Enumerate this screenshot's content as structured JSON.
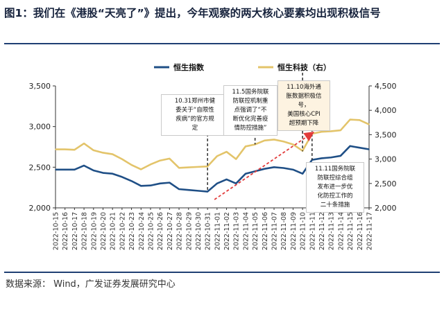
{
  "header": {
    "title": "图1：我们在《港股“天亮了”》提出，今年观察的两大核心要素均出现积极信号"
  },
  "source": "数据来源：  Wind，广发证券发展研究中心",
  "colors": {
    "hsi": "#1f4f86",
    "hstech": "#e3c46a",
    "arrow": "#e23b3b"
  },
  "chart_data": {
    "type": "line",
    "x": [
      "2022-10-15",
      "2022-10-16",
      "2022-10-17",
      "2022-10-18",
      "2022-10-19",
      "2022-10-20",
      "2022-10-21",
      "2022-10-22",
      "2022-10-23",
      "2022-10-24",
      "2022-10-25",
      "2022-10-26",
      "2022-10-27",
      "2022-10-28",
      "2022-10-29",
      "2022-10-30",
      "2022-10-31",
      "2022-11-01",
      "2022-11-02",
      "2022-11-03",
      "2022-11-04",
      "2022-11-05",
      "2022-11-06",
      "2022-11-07",
      "2022-11-08",
      "2022-11-09",
      "2022-11-10",
      "2022-11-11",
      "2022-11-12",
      "2022-11-13",
      "2022-11-14",
      "2022-11-15",
      "2022-11-16",
      "2022-11-17"
    ],
    "series": [
      {
        "name": "恒生指数",
        "axis": "left",
        "values": [
          2470,
          2470,
          2470,
          2520,
          2460,
          2430,
          2420,
          2380,
          2330,
          2270,
          2275,
          2300,
          2310,
          2230,
          2220,
          2210,
          2200,
          2300,
          2350,
          2300,
          2420,
          2450,
          2480,
          2500,
          2490,
          2470,
          2420,
          2590,
          2610,
          2620,
          2640,
          2760,
          2740,
          2720
        ]
      },
      {
        "name": "恒生科技（右）",
        "axis": "right",
        "values": [
          3200,
          3200,
          3190,
          3320,
          3180,
          3130,
          3100,
          3000,
          2880,
          2790,
          2890,
          2970,
          3010,
          2820,
          2830,
          2840,
          2850,
          3060,
          3150,
          3000,
          3260,
          3300,
          3380,
          3400,
          3360,
          3300,
          3170,
          3520,
          3560,
          3570,
          3590,
          3810,
          3800,
          3710
        ]
      }
    ],
    "y_left": {
      "lim": [
        2000,
        3500
      ],
      "ticks": [
        "2,000",
        "2,500",
        "3,000",
        "3,500"
      ]
    },
    "y_right": {
      "lim": [
        2000,
        4500
      ],
      "ticks": [
        "2,000",
        "2,500",
        "3,000",
        "3,500",
        "4,000",
        "4,500"
      ]
    },
    "legend_position": "top-right",
    "annotations": [
      {
        "date": "2022-10-31",
        "lines": [
          "10.31郑州市健",
          "委关于“自限性",
          "疾病”的官方规",
          "定"
        ]
      },
      {
        "date": "2022-11-05",
        "lines": [
          "11.5国务院联",
          "防联控机制重",
          "点强调了“不",
          "断优化完善疫",
          "情防控措施”"
        ]
      },
      {
        "date": "2022-11-10",
        "lines": [
          "11.10海外通",
          "胀数据积极信号，",
          "美国核心CPI",
          "超预期下降"
        ]
      },
      {
        "date": "2022-11-11",
        "lines": [
          "11.11国务院联",
          "防联控综合组",
          "发布进一步优",
          "化防控工作的",
          "二十条措施"
        ]
      }
    ]
  }
}
